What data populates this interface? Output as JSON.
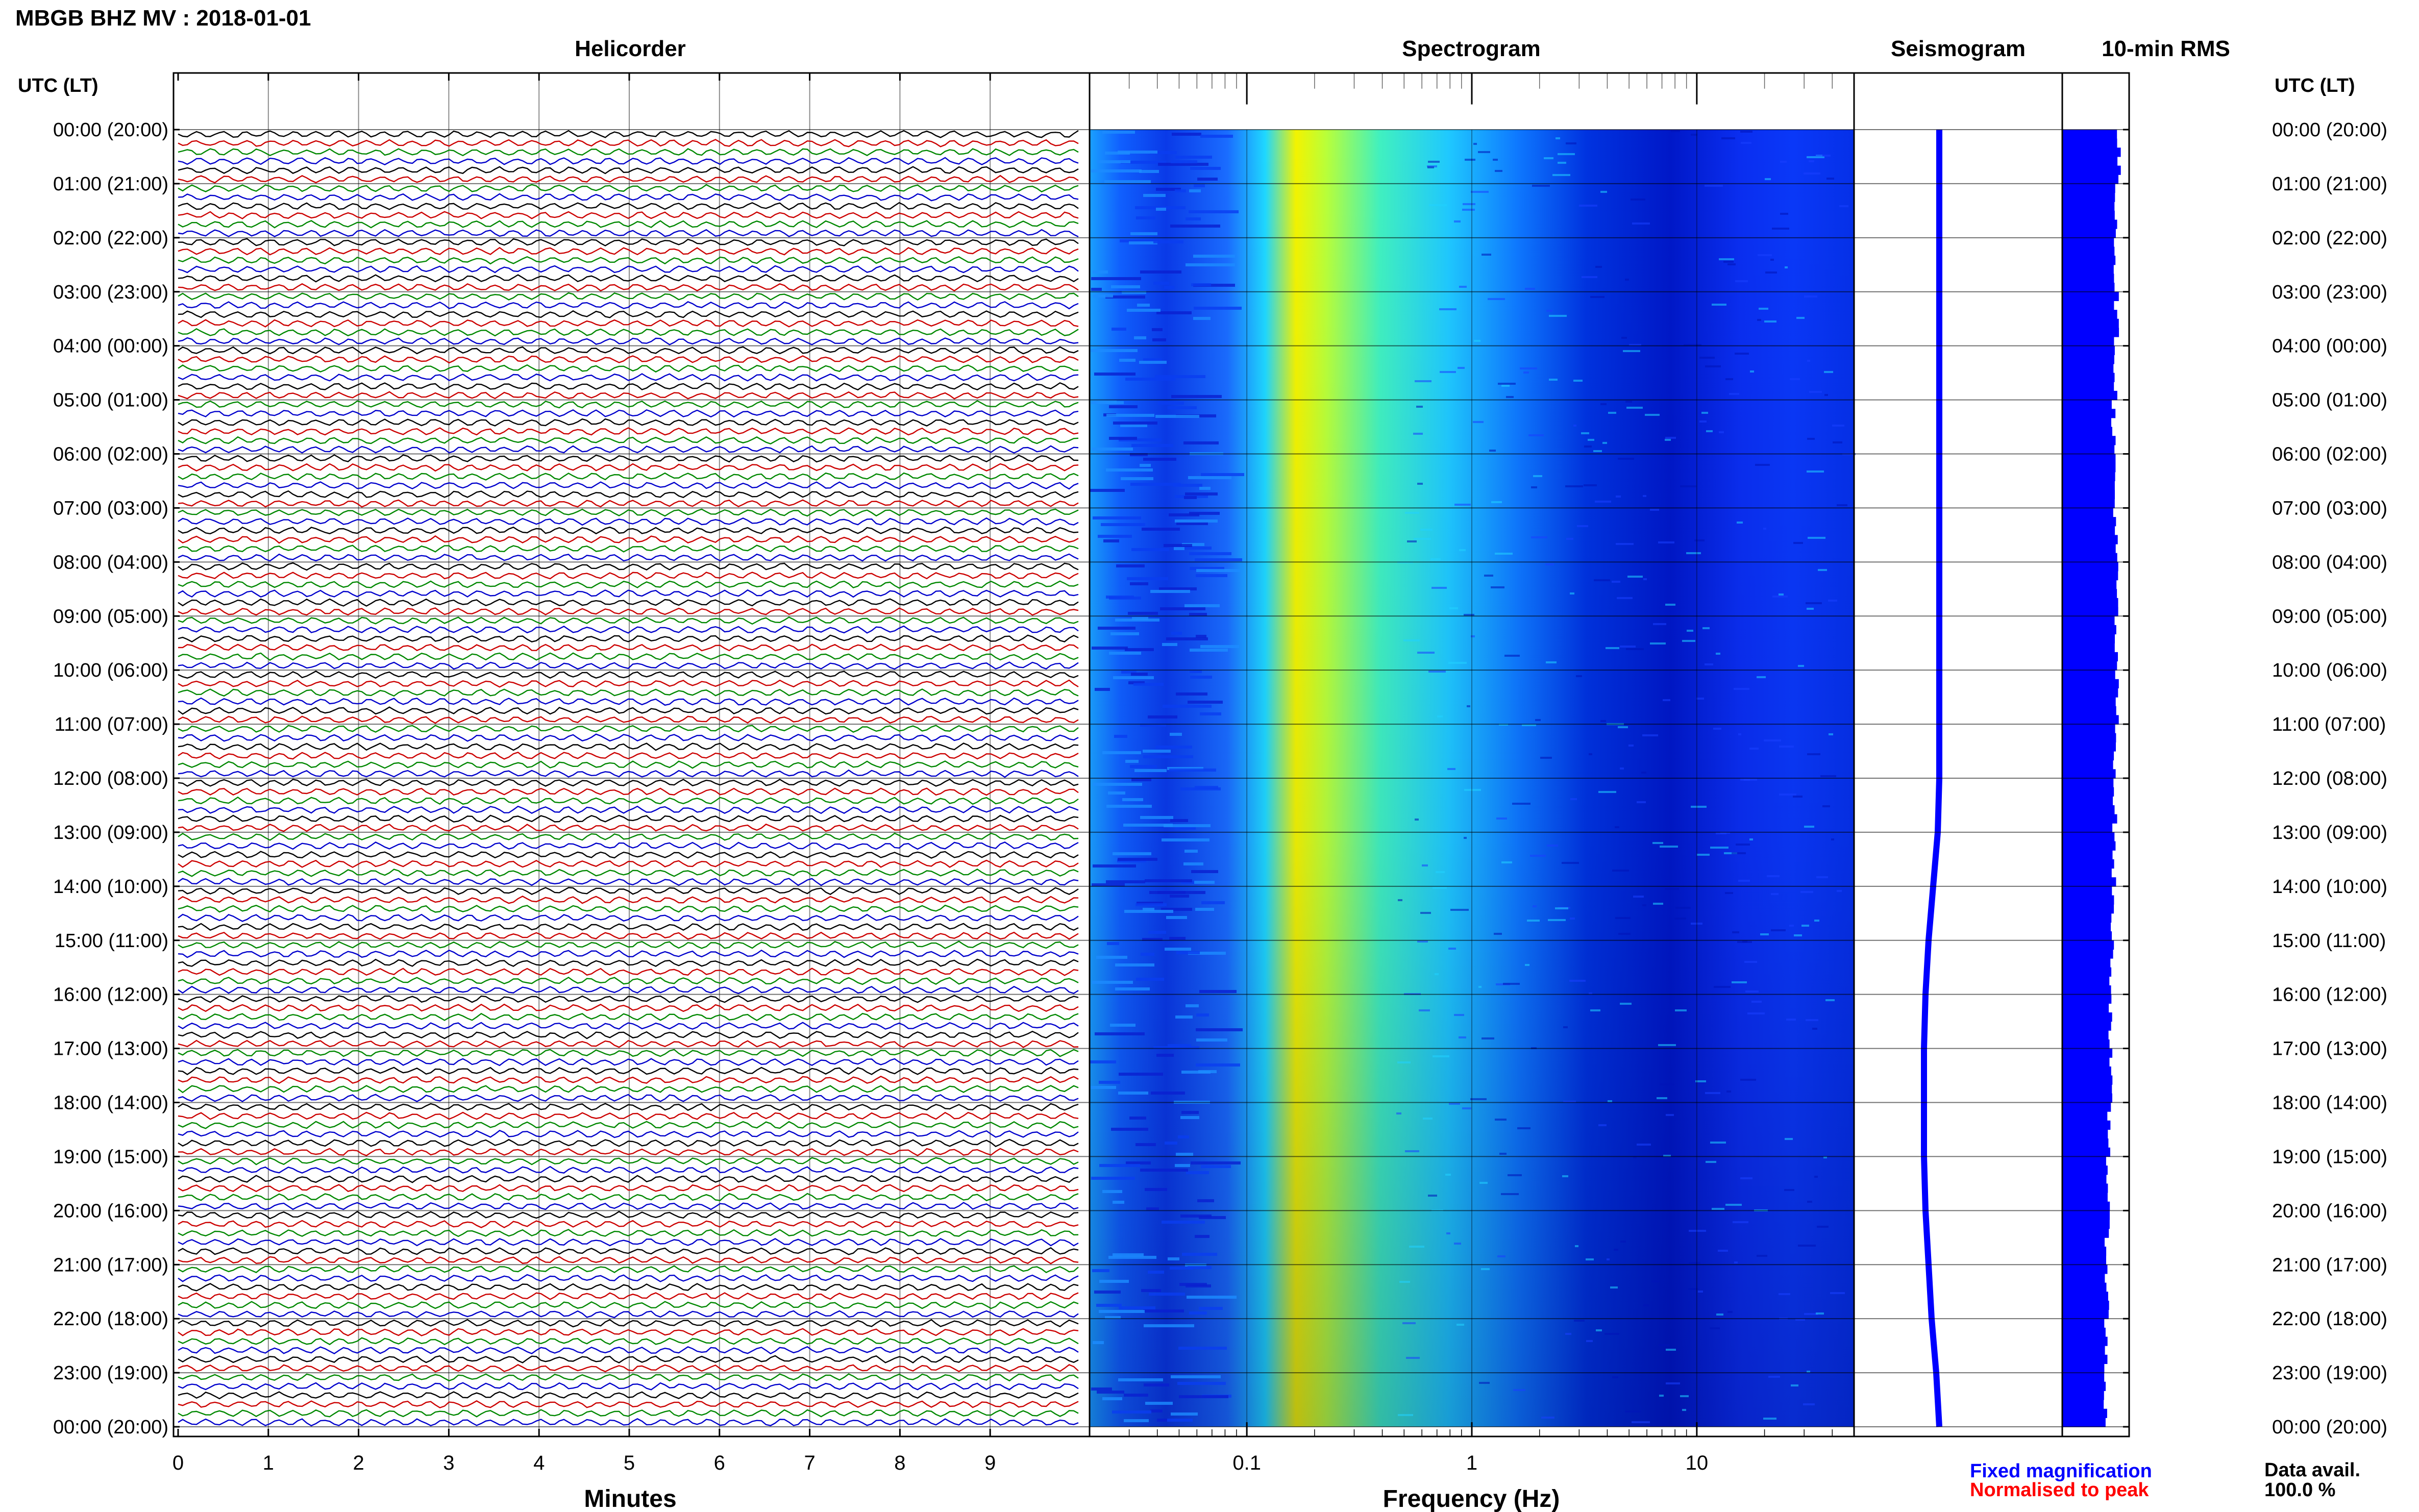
{
  "header": {
    "station_title": "MBGB BHZ MV : 2018-01-01"
  },
  "panels": {
    "helicorder": "Helicorder",
    "spectrogram": "Spectrogram",
    "seismogram": "Seismogram",
    "rms": "10-min RMS"
  },
  "axes": {
    "time_axis_label": "UTC (LT)",
    "helicorder_xlabel": "Minutes",
    "spectrogram_xlabel": "Frequency (Hz)"
  },
  "legend": {
    "fixed_magnification": "Fixed magnification",
    "normalised_to_peak": "Normalised to peak",
    "fixed_color": "#0000ff",
    "normalised_color": "#ff0000"
  },
  "availability": {
    "label": "Data avail.",
    "value": "100.0 %"
  },
  "colors": {
    "trace_cycle": [
      "#000000",
      "#cc0000",
      "#008800",
      "#0000cc"
    ],
    "rms_fill": "#0000ff",
    "seismogram_trace": "#0000ff"
  },
  "chart_data": {
    "type": "heatmap",
    "title": "MBGB BHZ MV : 2018-01-01",
    "hour_labels": [
      "00:00 (20:00)",
      "01:00 (21:00)",
      "02:00 (22:00)",
      "03:00 (23:00)",
      "04:00 (00:00)",
      "05:00 (01:00)",
      "06:00 (02:00)",
      "07:00 (03:00)",
      "08:00 (04:00)",
      "09:00 (05:00)",
      "10:00 (06:00)",
      "11:00 (07:00)",
      "12:00 (08:00)",
      "13:00 (09:00)",
      "14:00 (10:00)",
      "15:00 (11:00)",
      "16:00 (12:00)",
      "17:00 (13:00)",
      "18:00 (14:00)",
      "19:00 (15:00)",
      "20:00 (16:00)",
      "21:00 (17:00)",
      "22:00 (18:00)",
      "23:00 (19:00)",
      "00:00 (20:00)"
    ],
    "helicorder": {
      "xlabel": "Minutes",
      "xlim": [
        0,
        10
      ],
      "xticks": [
        "0",
        "1",
        "2",
        "3",
        "4",
        "5",
        "6",
        "7",
        "8",
        "9"
      ],
      "lines_per_hour": 6,
      "total_lines": 144
    },
    "spectrogram": {
      "xlabel": "Frequency (Hz)",
      "xscale": "log",
      "xlim": [
        0.02,
        50
      ],
      "xticks": [
        {
          "value": 0.1,
          "label": "0.1"
        },
        {
          "value": 1,
          "label": "1"
        },
        {
          "value": 10,
          "label": "10"
        }
      ],
      "peak_frequency_hz": 0.25,
      "colormap": "jet"
    },
    "seismogram": {
      "description_values": "long-period trace per 10 minutes",
      "center_offset": [
        0.5,
        0.5,
        0.5,
        0.5,
        0.5,
        0.5,
        0.5,
        0.5,
        0.5,
        0.5,
        0.5,
        0.5,
        0.5,
        0.45,
        0.3,
        0.15,
        0.05,
        0.0,
        0.0,
        0.0,
        0.05,
        0.15,
        0.25,
        0.4,
        0.5
      ]
    },
    "rms": {
      "unit": "relative",
      "hourly_values": [
        0.6,
        0.58,
        0.57,
        0.58,
        0.57,
        0.55,
        0.56,
        0.57,
        0.58,
        0.57,
        0.58,
        0.57,
        0.56,
        0.55,
        0.54,
        0.53,
        0.52,
        0.51,
        0.5,
        0.49,
        0.48,
        0.48,
        0.47,
        0.46,
        0.46
      ]
    }
  }
}
